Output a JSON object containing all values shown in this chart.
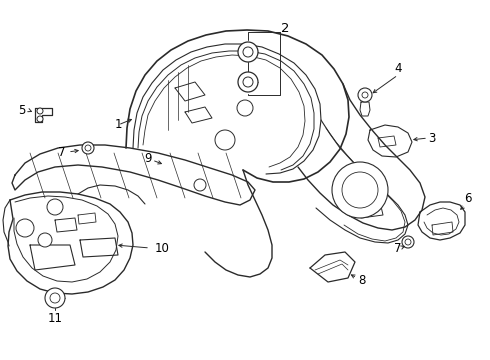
{
  "bg_color": "#ffffff",
  "line_color": "#2a2a2a",
  "label_color": "#000000",
  "figsize": [
    4.9,
    3.6
  ],
  "dpi": 100,
  "xlim": [
    0,
    490
  ],
  "ylim": [
    0,
    360
  ],
  "parts": {
    "main_panel_label": "1",
    "insulator_label": "9",
    "left_panel_label": "10",
    "right_bracket_label": "6",
    "wedge_label": "8",
    "top_right_label": "3"
  }
}
